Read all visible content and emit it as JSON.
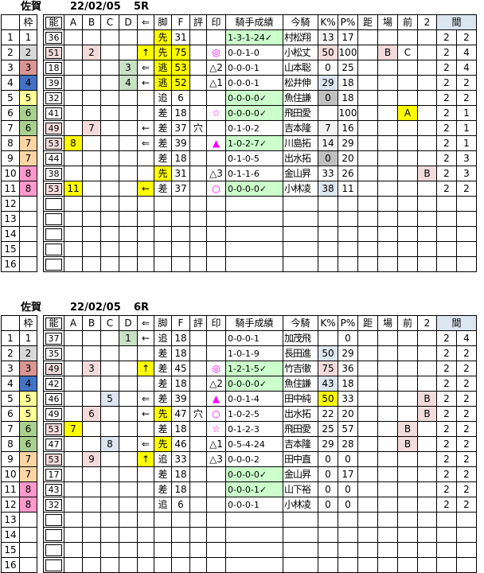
{
  "palette": {
    "y": "#ffff00",
    "pk": "#f2dcdb",
    "bl": "#dce6f1",
    "gn": "#ccffcc",
    "dg": "#c9e1c4",
    "lg": "#f2f2f2",
    "gy": "#bfbfbf",
    "w1": "#ffffff",
    "w2": "#d9d9d9",
    "w3": "#da9694",
    "w4": "#4472c4",
    "w5": "#ffff99",
    "w6": "#a9d08e",
    "w7": "#fcd5a4",
    "w8": "#ff99cc",
    "header_ma": "#dce6f1",
    "mark_magenta": "#ff00ff",
    "border": "#000000"
  },
  "columns": {
    "headers": {
      "num": "",
      "waku": "枠",
      "noh": "能",
      "a": "A",
      "b": "B",
      "c": "C",
      "d": "D",
      "arr": "⇐",
      "leg": "脚",
      "f": "F",
      "hyo": "評",
      "mark": "印",
      "rec": "騎手成績",
      "jk": "今騎",
      "k": "K%",
      "p": "P%",
      "kyo": "距",
      "ba": "場",
      "mae": "前",
      "two": "2",
      "ma": "間"
    }
  },
  "tables": [
    {
      "venue": "佐賀",
      "date": "22/02/05",
      "race": "5R",
      "rows": [
        {
          "num": "1",
          "waku": "1",
          "waku_bg": "w1",
          "noh": "36",
          "leg": "先",
          "leg_bg": "y",
          "f": "31",
          "rec": "1-3-1-24✓",
          "rec_bg": "gn",
          "jk": "村松翔",
          "k": "13",
          "k_bg": "lg",
          "p": "17",
          "m1": "2",
          "m2": "2"
        },
        {
          "num": "2",
          "waku": "2",
          "waku_bg": "w2",
          "noh": "51",
          "noh_bg": "pk",
          "b": "2",
          "b_bg": "pk",
          "arr": "↑",
          "arr_bg": "y",
          "leg": "先",
          "leg_bg": "y",
          "f": "75",
          "f_bg": "y",
          "mark": "◎",
          "rec": "0-0-1-0",
          "jk": "小松丈",
          "k": "50",
          "k_bg": "pk",
          "p": "100",
          "ba": "B",
          "ba_bg": "pk",
          "mae": "C",
          "m1": "2",
          "m2": "4"
        },
        {
          "num": "3",
          "waku": "3",
          "waku_bg": "w3",
          "noh": "18",
          "d": "3",
          "d_bg": "dg",
          "arr": "⇐",
          "leg": "逃",
          "leg_bg": "y",
          "f": "53",
          "f_bg": "y",
          "mark": "△2",
          "mark_black": true,
          "rec": "0-0-0-1",
          "jk": "山本聡",
          "k": "0",
          "p": "25",
          "m1": "2",
          "m2": "4"
        },
        {
          "num": "4",
          "waku": "4",
          "waku_bg": "w4",
          "noh": "39",
          "d": "4",
          "d_bg": "dg",
          "arr": "←",
          "leg": "逃",
          "leg_bg": "y",
          "f": "52",
          "f_bg": "y",
          "mark": "△1",
          "mark_black": true,
          "rec": "0-0-0-1",
          "jk": "松井伸",
          "k": "29",
          "k_bg": "bl",
          "p": "18",
          "m1": "2",
          "m2": "2"
        },
        {
          "num": "5",
          "waku": "5",
          "waku_bg": "w5",
          "noh": "32",
          "leg": "追",
          "f": "6",
          "rec": "0-0-0-0✓",
          "rec_bg": "gn",
          "jk": "魚住謙",
          "k": "0",
          "k_bg": "gy",
          "p": "18",
          "m1": "2",
          "m2": "2"
        },
        {
          "num": "6",
          "waku": "6",
          "waku_bg": "w6",
          "noh": "41",
          "leg": "差",
          "f": "18",
          "mark": "☆",
          "rec": "0-0-0-0✓",
          "rec_bg": "gn",
          "jk": "飛田愛",
          "k": "",
          "p": "100",
          "mae": "A",
          "mae_bg": "y",
          "m1": "2",
          "m2": "1"
        },
        {
          "num": "7",
          "waku": "6",
          "waku_bg": "w6",
          "noh": "49",
          "noh_bg": "pk",
          "b": "7",
          "b_bg": "pk",
          "arr": "←",
          "leg": "差",
          "f": "37",
          "hyo": "穴",
          "rec": "0-1-0-2",
          "jk": "吉本隆",
          "k": "7",
          "k_bg": "lg",
          "p": "16",
          "m1": "2",
          "m2": "1"
        },
        {
          "num": "8",
          "waku": "7",
          "waku_bg": "w7",
          "noh": "53",
          "noh_bg": "pk",
          "a": "8",
          "a_bg": "y",
          "arr": "⇐",
          "leg": "差",
          "f": "39",
          "mark": "▲",
          "rec": "1-0-2-7✓",
          "rec_bg": "gn",
          "jk": "川島拓",
          "k": "14",
          "k_bg": "lg",
          "p": "29",
          "m1": "2",
          "m2": "1"
        },
        {
          "num": "9",
          "waku": "7",
          "waku_bg": "w7",
          "noh": "44",
          "leg": "差",
          "f": "18",
          "rec": "0-1-0-5",
          "jk": "出水拓",
          "k": "0",
          "k_bg": "gy",
          "p": "20",
          "m1": "2",
          "m2": "3"
        },
        {
          "num": "10",
          "waku": "8",
          "waku_bg": "w8",
          "noh": "38",
          "leg": "先",
          "leg_bg": "y",
          "f": "31",
          "mark": "△3",
          "mark_black": true,
          "rec": "0-1-1-6",
          "jk": "金山昇",
          "k": "33",
          "p": "26",
          "two": "B",
          "two_bg": "pk",
          "m1": "2",
          "m2": "3"
        },
        {
          "num": "11",
          "waku": "8",
          "waku_bg": "w8",
          "noh": "53",
          "noh_bg": "pk",
          "a": "11",
          "a_bg": "y",
          "arr": "←",
          "arr_bg": "y",
          "leg": "差",
          "f": "37",
          "mark": "○",
          "rec": "0-0-0-0✓",
          "rec_bg": "gn",
          "jk": "小林凌",
          "k": "38",
          "k_bg": "bl",
          "p": "11",
          "m1": "2",
          "m2": "2"
        },
        {
          "num": "12"
        },
        {
          "num": "13"
        },
        {
          "num": "14"
        },
        {
          "num": "15"
        },
        {
          "num": "16"
        }
      ]
    },
    {
      "venue": "佐賀",
      "date": "22/02/05",
      "race": "6R",
      "rows": [
        {
          "num": "1",
          "waku": "1",
          "waku_bg": "w1",
          "noh": "37",
          "d": "1",
          "d_bg": "dg",
          "arr": "←",
          "leg": "追",
          "f": "18",
          "rec": "0-0-0-1",
          "jk": "加茂飛",
          "k": "",
          "p": "0",
          "m1": "2",
          "m2": "4"
        },
        {
          "num": "2",
          "waku": "2",
          "waku_bg": "w2",
          "noh": "35",
          "leg": "差",
          "f": "18",
          "rec": "1-0-1-9",
          "jk": "長田進",
          "k": "50",
          "k_bg": "bl",
          "p": "29",
          "m1": "2",
          "m2": "2"
        },
        {
          "num": "3",
          "waku": "3",
          "waku_bg": "w3",
          "noh": "49",
          "noh_bg": "pk",
          "b": "3",
          "b_bg": "pk",
          "arr": "↑",
          "arr_bg": "y",
          "leg": "差",
          "f": "45",
          "mark": "◎",
          "rec": "1-2-1-5✓",
          "rec_bg": "gn",
          "jk": "竹吉徹",
          "k": "75",
          "k_bg": "pk",
          "p": "36",
          "m1": "2",
          "m2": "2"
        },
        {
          "num": "4",
          "waku": "4",
          "waku_bg": "w4",
          "noh": "42",
          "leg": "差",
          "f": "18",
          "mark": "△2",
          "mark_black": true,
          "rec": "0-0-0-0✓",
          "rec_bg": "gn",
          "jk": "魚住謙",
          "k": "43",
          "k_bg": "bl",
          "p": "18",
          "m1": "2",
          "m2": "2"
        },
        {
          "num": "5",
          "waku": "5",
          "waku_bg": "w5",
          "noh": "46",
          "c": "5",
          "c_bg": "bl",
          "arr": "⇐",
          "leg": "差",
          "f": "39",
          "mark": "▲",
          "rec": "0-0-1-4",
          "jk": "田中純",
          "k": "50",
          "k_bg": "y",
          "p": "33",
          "two": "B",
          "two_bg": "pk",
          "m1": "2",
          "m2": "2"
        },
        {
          "num": "6",
          "waku": "5",
          "waku_bg": "w5",
          "noh": "49",
          "b": "6",
          "b_bg": "pk",
          "arr": "←",
          "leg": "先",
          "leg_bg": "y",
          "f": "47",
          "hyo": "穴",
          "mark": "○",
          "rec": "1-0-2-5",
          "jk": "出水拓",
          "k": "22",
          "p": "20",
          "two": "B",
          "two_bg": "pk",
          "m1": "2",
          "m2": "2"
        },
        {
          "num": "7",
          "waku": "6",
          "waku_bg": "w6",
          "noh": "53",
          "noh_bg": "pk",
          "a": "7",
          "a_bg": "y",
          "leg": "差",
          "f": "18",
          "mark": "☆",
          "rec": "0-1-2-3",
          "jk": "飛田愛",
          "k": "25",
          "k_bg": "lg",
          "p": "57",
          "mae": "B",
          "mae_bg": "pk",
          "m1": "2",
          "m2": "2"
        },
        {
          "num": "8",
          "waku": "6",
          "waku_bg": "w6",
          "noh": "47",
          "c": "8",
          "c_bg": "bl",
          "arr": "⇐",
          "leg": "先",
          "leg_bg": "y",
          "f": "46",
          "mark": "△1",
          "mark_black": true,
          "rec": "0-5-4-24",
          "jk": "吉本隆",
          "k": "29",
          "p": "28",
          "mae": "B",
          "mae_bg": "pk",
          "m1": "2",
          "m2": "2"
        },
        {
          "num": "9",
          "waku": "7",
          "waku_bg": "w7",
          "noh": "53",
          "noh_bg": "pk",
          "b": "9",
          "b_bg": "pk",
          "arr": "↑",
          "arr_bg": "y",
          "leg": "追",
          "f": "33",
          "mark": "△3",
          "mark_black": true,
          "rec": "0-0-0-2",
          "jk": "田中直",
          "k": "0",
          "p": "0",
          "m1": "2",
          "m2": "2"
        },
        {
          "num": "10",
          "waku": "7",
          "waku_bg": "w7",
          "noh": "17",
          "leg": "差",
          "f": "18",
          "rec": "0-0-0-0✓",
          "rec_bg": "gn",
          "jk": "金山昇",
          "k": "0",
          "p": "17",
          "m1": "2",
          "m2": "2"
        },
        {
          "num": "11",
          "waku": "8",
          "waku_bg": "w8",
          "noh": "43",
          "leg": "差",
          "f": "18",
          "rec": "0-0-0-1✓",
          "rec_bg": "gn",
          "jk": "山下裕",
          "k": "0",
          "p": "0",
          "m1": "2",
          "m2": "2"
        },
        {
          "num": "12",
          "waku": "8",
          "waku_bg": "w8",
          "noh": "32",
          "leg": "追",
          "f": "6",
          "rec": "0-0-0-1",
          "jk": "小林凌",
          "k": "0",
          "p": "0",
          "m1": "2",
          "m2": "2"
        },
        {
          "num": "13"
        },
        {
          "num": "14"
        },
        {
          "num": "15"
        },
        {
          "num": "16"
        }
      ]
    }
  ]
}
